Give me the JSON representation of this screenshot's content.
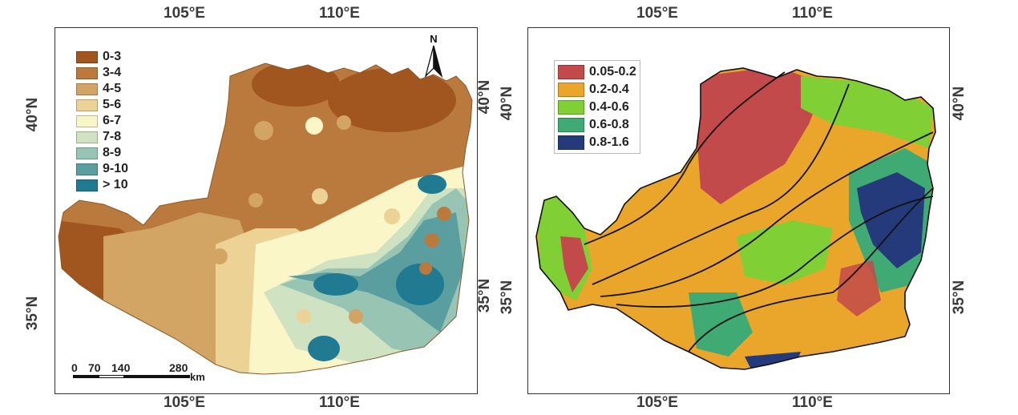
{
  "left_map": {
    "top_ticks": [
      "105°E",
      "110°E"
    ],
    "bottom_ticks": [
      "105°E",
      "110°E"
    ],
    "left_ticks": [
      "40°N",
      "35°N"
    ],
    "right_ticks": [
      "40°N",
      "35°N"
    ],
    "legend": [
      {
        "label": "0-3",
        "color": "#a0561e"
      },
      {
        "label": "3-4",
        "color": "#ba7a3e"
      },
      {
        "label": "4-5",
        "color": "#d3a565"
      },
      {
        "label": "5-6",
        "color": "#ecd295"
      },
      {
        "label": "6-7",
        "color": "#fbf6c8"
      },
      {
        "label": "7-8",
        "color": "#cfe3c2"
      },
      {
        "label": "8-9",
        "color": "#98c4b3"
      },
      {
        "label": "9-10",
        "color": "#5a9ea0"
      },
      {
        "label": "> 10",
        "color": "#1f7a92"
      }
    ],
    "north_label": "N",
    "scale": {
      "labels": [
        "0",
        "70",
        "140",
        "280"
      ],
      "unit": "km"
    }
  },
  "right_map": {
    "top_ticks": [
      "105°E",
      "110°E"
    ],
    "bottom_ticks": [
      "105°E",
      "110°E"
    ],
    "left_ticks": [
      "40°N",
      "35°N"
    ],
    "right_ticks": [
      "40°N",
      "35°N"
    ],
    "legend": [
      {
        "label": "0.05-0.2",
        "color": "#c24a4a"
      },
      {
        "label": "0.2-0.4",
        "color": "#eaa62a"
      },
      {
        "label": "0.4-0.6",
        "color": "#7fcf35"
      },
      {
        "label": "0.6-0.8",
        "color": "#3faa73"
      },
      {
        "label": "0.8-1.6",
        "color": "#253a7a"
      }
    ]
  }
}
